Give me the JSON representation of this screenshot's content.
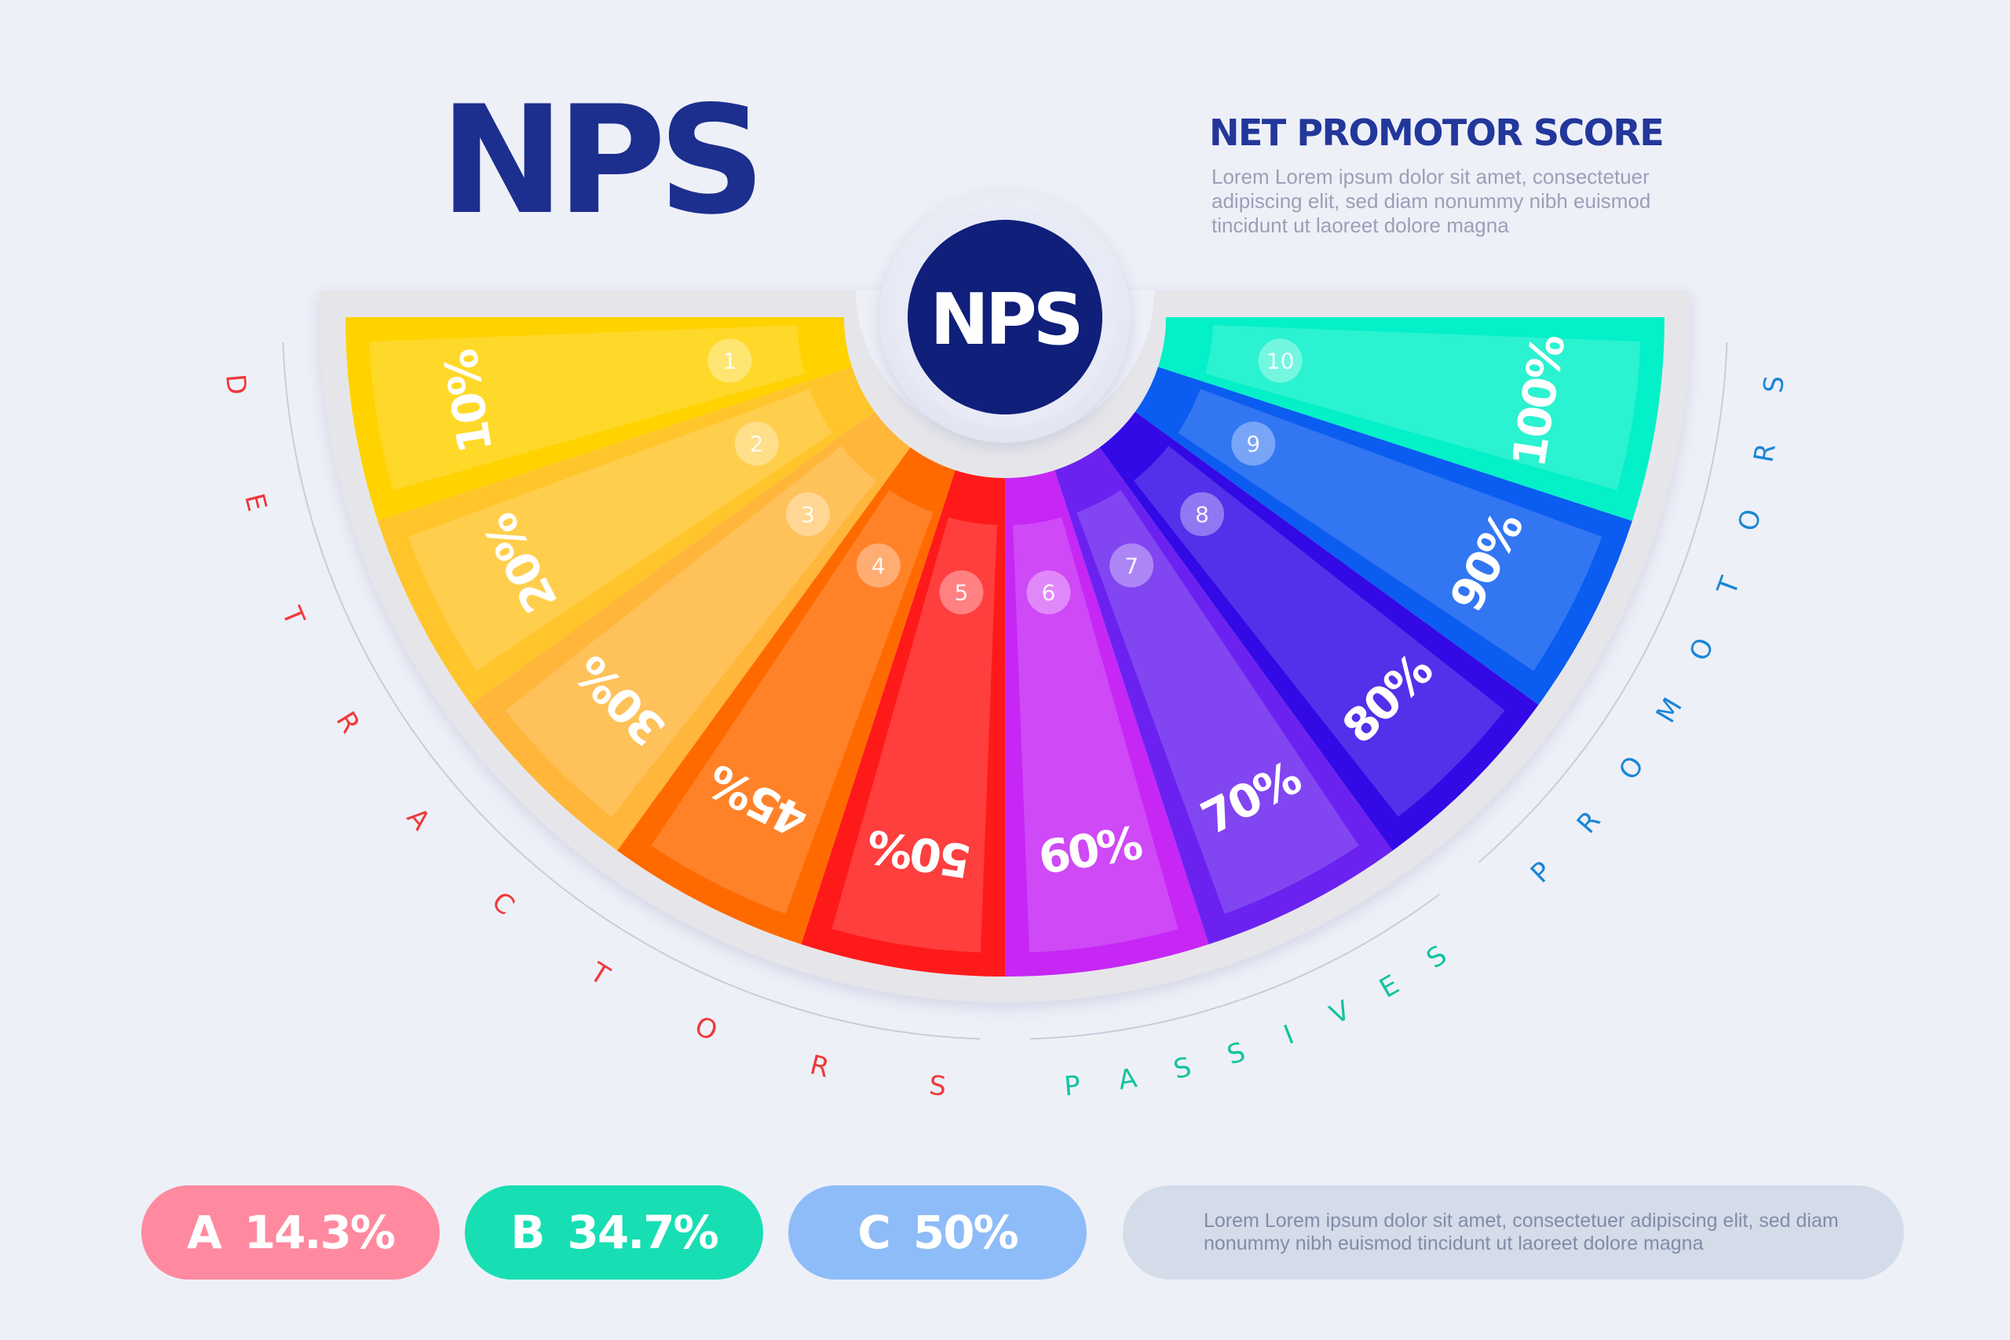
{
  "title": "NPS",
  "subtitle": "NET PROMOTOR SCORE",
  "description": "Lorem Lorem ipsum dolor sit amet, consectetuer adipiscing elit, sed diam nonummy nibh euismod tincidunt ut laoreet dolore magna",
  "center_label": "NPS",
  "segments": [
    {
      "number": "1",
      "label": "10%",
      "color": "#ffd200"
    },
    {
      "number": "2",
      "label": "20%",
      "color": "#ffc52a"
    },
    {
      "number": "3",
      "label": "30%",
      "color": "#ffb63a"
    },
    {
      "number": "4",
      "label": "45%",
      "color": "#ff6a00"
    },
    {
      "number": "5",
      "label": "50%",
      "color": "#ff1a1a"
    },
    {
      "number": "6",
      "label": "60%",
      "color": "#c627f5"
    },
    {
      "number": "7",
      "label": "70%",
      "color": "#6b22f0"
    },
    {
      "number": "8",
      "label": "80%",
      "color": "#3309e6"
    },
    {
      "number": "9",
      "label": "90%",
      "color": "#0b5cf0"
    },
    {
      "number": "10",
      "label": "100%",
      "color": "#03f0c8"
    }
  ],
  "groups": {
    "detractors": {
      "label": "DETRACTORS",
      "color": "#ee3a3a"
    },
    "passives": {
      "label": "PASSIVES",
      "color": "#15c49f"
    },
    "promotors": {
      "label": "PROMOTORS",
      "color": "#1b86d6"
    }
  },
  "stats": [
    {
      "letter": "A",
      "value": "14.3%",
      "color": "#ff8aa0"
    },
    {
      "letter": "B",
      "value": "34.7%",
      "color": "#18deb3"
    },
    {
      "letter": "C",
      "value": "50%",
      "color": "#8ebcf8"
    }
  ],
  "footer_text": "Lorem Lorem ipsum dolor sit amet, consectetuer adipiscing elit, sed diam nonummy nibh euismod tincidunt ut laoreet dolore magna"
}
